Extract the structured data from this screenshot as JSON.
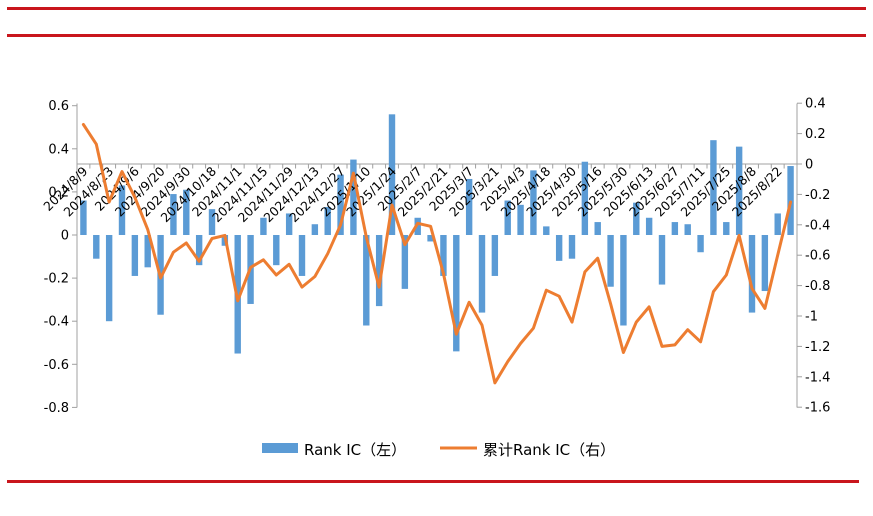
{
  "page": {
    "background": "#ffffff",
    "rule_color": "#c9161d"
  },
  "chart_data": {
    "type": "bar",
    "subtype": "bar+line dual axis",
    "title": "",
    "n_categories": 56,
    "label_every": 2,
    "visible_category_labels": [
      "2024/8/9",
      "2024/8/23",
      "2024/9/6",
      "2024/9/20",
      "2024/9/30",
      "2024/10/18",
      "2024/11/1",
      "2024/11/15",
      "2024/11/29",
      "2024/12/13",
      "2024/12/27",
      "2025/1/10",
      "2025/1/24",
      "2025/2/7",
      "2025/2/21",
      "2025/3/7",
      "2025/3/21",
      "2025/4/3",
      "2025/4/18",
      "2025/4/30",
      "2025/5/16",
      "2025/5/30",
      "2025/6/13",
      "2025/6/27",
      "2025/7/11",
      "2025/7/25",
      "2025/8/8",
      "2025/8/22"
    ],
    "series": [
      {
        "name": "Rank IC（左）",
        "type": "bar",
        "axis": "left",
        "color": "#5B9BD5",
        "values": [
          0.16,
          -0.11,
          -0.4,
          0.23,
          -0.19,
          -0.15,
          -0.37,
          0.19,
          0.21,
          -0.14,
          0.12,
          -0.05,
          -0.55,
          -0.32,
          0.08,
          -0.14,
          0.1,
          -0.19,
          0.05,
          0.13,
          0.28,
          0.35,
          -0.42,
          -0.33,
          0.56,
          -0.25,
          0.08,
          -0.03,
          -0.19,
          -0.54,
          0.26,
          -0.36,
          -0.19,
          0.16,
          0.14,
          0.3,
          0.04,
          -0.12,
          -0.11,
          0.34,
          0.06,
          -0.24,
          -0.42,
          0.15,
          0.08,
          -0.23,
          0.06,
          0.05,
          -0.08,
          0.44,
          0.06,
          0.41,
          -0.36,
          -0.26,
          0.1,
          0.32
        ]
      },
      {
        "name": "累计Rank IC（右）",
        "type": "line",
        "axis": "right",
        "color": "#ED7D31",
        "values": [
          0.26,
          0.13,
          -0.25,
          -0.05,
          -0.22,
          -0.43,
          -0.75,
          -0.58,
          -0.52,
          -0.64,
          -0.49,
          -0.47,
          -0.9,
          -0.68,
          -0.63,
          -0.73,
          -0.66,
          -0.81,
          -0.74,
          -0.59,
          -0.4,
          -0.06,
          -0.48,
          -0.81,
          -0.27,
          -0.53,
          -0.39,
          -0.41,
          -0.72,
          -1.12,
          -0.91,
          -1.06,
          -1.44,
          -1.3,
          -1.18,
          -1.08,
          -0.83,
          -0.87,
          -1.04,
          -0.71,
          -0.62,
          -0.92,
          -1.24,
          -1.04,
          -0.94,
          -1.2,
          -1.19,
          -1.09,
          -1.17,
          -0.84,
          -0.73,
          -0.47,
          -0.82,
          -0.95,
          -0.6,
          -0.25
        ]
      }
    ],
    "left_axis": {
      "min": -0.8,
      "max": 0.6,
      "step": 0.2,
      "tick_labels": [
        "0.6",
        "0.4",
        "0.2",
        "0",
        "-0.2",
        "-0.4",
        "-0.6",
        "-0.8"
      ]
    },
    "right_axis": {
      "min": -1.6,
      "max": 0.4,
      "step": 0.2,
      "tick_labels": [
        "0.4",
        "0.2",
        "0",
        "-0.2",
        "-0.4",
        "-0.6",
        "-0.8",
        "-1",
        "-1.2",
        "-1.4",
        "-1.6"
      ]
    },
    "grid": false,
    "axis_color": "#a0a0a0",
    "text_color": "#000000",
    "legend_position": "bottom"
  }
}
